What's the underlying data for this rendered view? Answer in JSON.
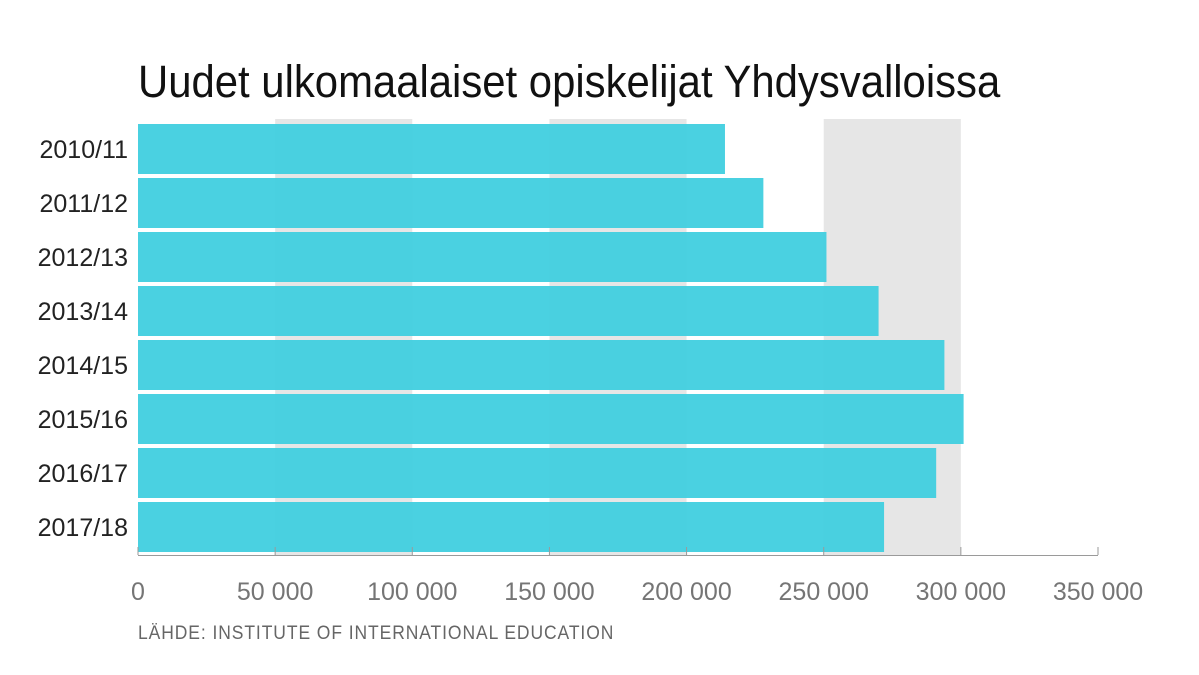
{
  "chart_data": {
    "type": "bar",
    "orientation": "horizontal",
    "title": "Uudet ulkomaalaiset opiskelijat Yhdysvalloissa",
    "source": "LÄHDE: INSTITUTE OF INTERNATIONAL EDUCATION",
    "categories": [
      "2010/11",
      "2011/12",
      "2012/13",
      "2013/14",
      "2014/15",
      "2015/16",
      "2016/17",
      "2017/18"
    ],
    "values": [
      214000,
      228000,
      251000,
      270000,
      294000,
      301000,
      291000,
      272000
    ],
    "xlim": [
      0,
      350000
    ],
    "xticks": [
      0,
      50000,
      100000,
      150000,
      200000,
      250000,
      300000,
      350000
    ],
    "xtick_labels": [
      "0",
      "50 000",
      "100 000",
      "150 000",
      "200 000",
      "250 000",
      "300 000",
      "350 000"
    ],
    "xlabel": "",
    "ylabel": "",
    "grid": "alternating vertical bands",
    "colors": {
      "bar": "#3ccddf",
      "band": "#e6e6e6",
      "axis": "#9a9a9a"
    }
  }
}
